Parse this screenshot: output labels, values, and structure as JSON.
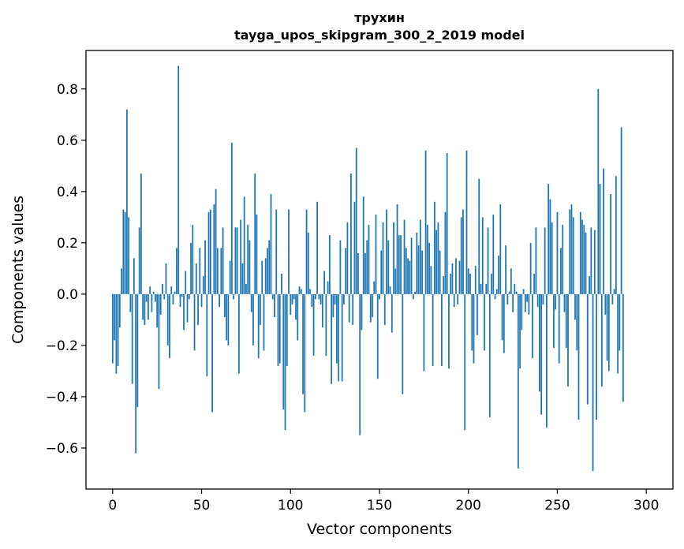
{
  "chart_data": {
    "type": "bar",
    "title": "трухин",
    "subtitle": "tayga_upos_skipgram_300_2_2019 model",
    "xlabel": "Vector components",
    "ylabel": "Components values",
    "xlim": [
      -15,
      315
    ],
    "ylim": [
      -0.76,
      0.95
    ],
    "xticks": [
      0,
      50,
      100,
      150,
      200,
      250,
      300
    ],
    "xtick_labels": [
      "0",
      "50",
      "100",
      "150",
      "200",
      "250",
      "300"
    ],
    "yticks": [
      -0.6,
      -0.4,
      -0.2,
      0.0,
      0.2,
      0.4,
      0.6,
      0.8
    ],
    "ytick_labels": [
      "−0.6",
      "−0.4",
      "−0.2",
      "0.0",
      "0.2",
      "0.4",
      "0.6",
      "0.8"
    ],
    "grid": false,
    "bar_color": "#1f77b4",
    "values": [
      -0.27,
      -0.18,
      -0.31,
      -0.28,
      -0.13,
      0.1,
      0.33,
      0.32,
      0.72,
      0.3,
      -0.07,
      -0.35,
      0.14,
      -0.62,
      -0.44,
      0.26,
      0.47,
      -0.1,
      -0.12,
      -0.03,
      -0.1,
      0.03,
      -0.07,
      0.01,
      -0.03,
      -0.13,
      -0.37,
      -0.08,
      0.04,
      -0.02,
      0.12,
      -0.2,
      -0.25,
      0.03,
      -0.04,
      0.01,
      0.18,
      0.89,
      -0.05,
      -0.01,
      -0.14,
      0.09,
      -0.11,
      -0.02,
      0.2,
      0.27,
      -0.22,
      0.12,
      -0.12,
      0.18,
      -0.05,
      0.07,
      0.21,
      -0.32,
      0.32,
      0.33,
      -0.46,
      0.35,
      0.41,
      0.18,
      -0.05,
      0.18,
      0.26,
      -0.09,
      -0.18,
      -0.2,
      0.13,
      0.59,
      -0.02,
      0.26,
      0.26,
      -0.31,
      0.29,
      0.12,
      0.38,
      0.04,
      0.27,
      0.21,
      -0.07,
      -0.2,
      0.47,
      0.31,
      -0.25,
      -0.12,
      0.13,
      -0.22,
      0.14,
      0.18,
      0.21,
      0.39,
      -0.02,
      -0.09,
      0.33,
      -0.28,
      -0.27,
      0.08,
      -0.45,
      -0.53,
      -0.28,
      0.33,
      -0.08,
      -0.04,
      -0.02,
      -0.1,
      -0.18,
      0.03,
      0.02,
      -0.39,
      -0.46,
      0.33,
      0.24,
      0.02,
      -0.05,
      -0.24,
      -0.02,
      0.36,
      -0.02,
      -0.04,
      -0.13,
      0.09,
      -0.24,
      0.05,
      0.23,
      -0.35,
      -0.09,
      -0.04,
      -0.27,
      -0.34,
      0.21,
      -0.34,
      -0.04,
      0.18,
      0.28,
      -0.11,
      0.47,
      -0.12,
      0.36,
      0.57,
      0.16,
      -0.55,
      -0.14,
      0.38,
      0.16,
      0.21,
      0.27,
      -0.11,
      -0.09,
      0.05,
      0.31,
      -0.33,
      -0.02,
      0.17,
      0.28,
      -0.12,
      0.33,
      0.21,
      0.03,
      -0.15,
      0.28,
      0.1,
      0.35,
      0.23,
      0.23,
      -0.39,
      0.29,
      0.18,
      0.14,
      0.13,
      0.22,
      -0.02,
      0.01,
      0.24,
      0.19,
      0.29,
      0.17,
      -0.3,
      0.56,
      0.27,
      0.2,
      0.11,
      -0.28,
      0.36,
      0.25,
      0.28,
      0.17,
      -0.28,
      0.07,
      0.32,
      0.55,
      -0.29,
      0.08,
      0.12,
      -0.05,
      0.14,
      -0.04,
      0.13,
      0.3,
      0.33,
      -0.53,
      0.56,
      0.1,
      0.08,
      -0.22,
      -0.27,
      0.11,
      -0.16,
      0.45,
      0.04,
      0.3,
      -0.22,
      0.04,
      0.26,
      -0.48,
      0.08,
      0.31,
      -0.02,
      0.02,
      0.15,
      0.35,
      -0.18,
      -0.23,
      0.19,
      -0.04,
      0.01,
      0.1,
      -0.07,
      0.04,
      0.01,
      -0.68,
      -0.29,
      -0.14,
      0.02,
      -0.07,
      -0.03,
      -0.08,
      0.2,
      -0.25,
      0.08,
      0.26,
      -0.05,
      -0.38,
      -0.47,
      -0.04,
      0.26,
      -0.52,
      0.43,
      0.37,
      0.28,
      -0.21,
      -0.06,
      0.32,
      -0.27,
      0.18,
      0.27,
      -0.07,
      -0.21,
      -0.36,
      0.33,
      0.35,
      0.3,
      -0.1,
      -0.22,
      -0.49,
      0.32,
      0.29,
      0.27,
      0.24,
      -0.43,
      0.07,
      0.26,
      -0.69,
      0.25,
      -0.49,
      0.8,
      0.43,
      -0.36,
      0.49,
      -0.08,
      -0.26,
      -0.3,
      0.39,
      -0.04,
      0.02,
      0.46,
      -0.31,
      -0.22,
      0.65,
      -0.42
    ]
  }
}
